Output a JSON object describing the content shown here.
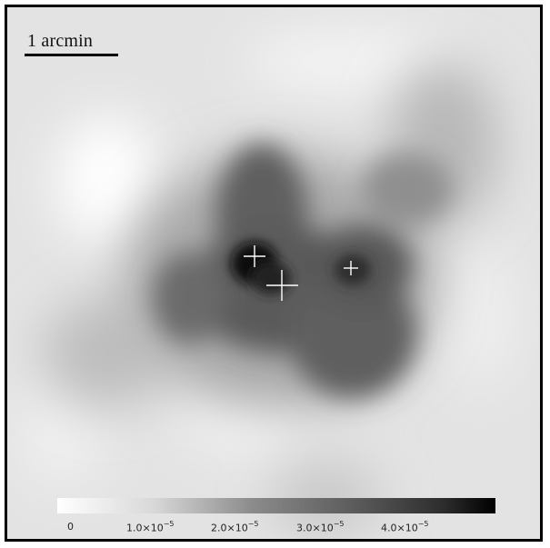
{
  "scale_bar": {
    "label": "1 arcmin"
  },
  "colorbar": {
    "ticks": [
      {
        "mant": "0",
        "exp": ""
      },
      {
        "mant": "1.0×10",
        "exp": "−5"
      },
      {
        "mant": "2.0×10",
        "exp": "−5"
      },
      {
        "mant": "3.0×10",
        "exp": "−5"
      },
      {
        "mant": "4.0×10",
        "exp": "−5"
      }
    ]
  }
}
